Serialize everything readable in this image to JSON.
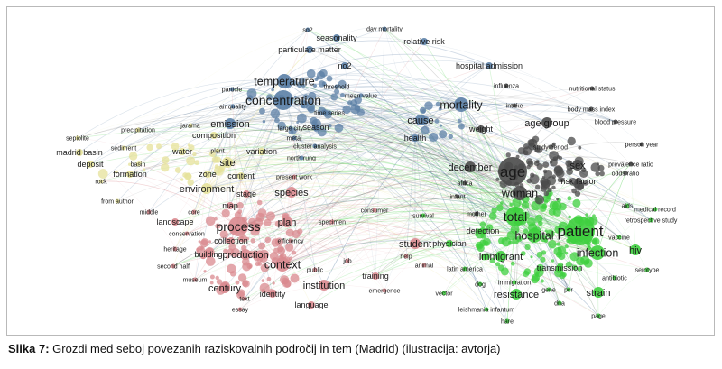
{
  "caption": {
    "label": "Slika 7:",
    "text": " Grozdi med seboj povezanih raziskovalnih področij in tem (Madrid) (ilustracija: avtorja)"
  },
  "clusters": [
    {
      "id": "blue",
      "color": "#5b7fa6"
    },
    {
      "id": "grey",
      "color": "#4a4a4a"
    },
    {
      "id": "green",
      "color": "#3ecf3e"
    },
    {
      "id": "red",
      "color": "#d9898f"
    },
    {
      "id": "yellow",
      "color": "#e6e29a"
    }
  ],
  "nodes": [
    {
      "t": "so2",
      "c": "blue",
      "w": 1
    },
    {
      "t": "seasonality",
      "c": "blue",
      "w": 2
    },
    {
      "t": "day mortality",
      "c": "blue",
      "w": 1
    },
    {
      "t": "particulate matter",
      "c": "blue",
      "w": 2
    },
    {
      "t": "relative risk",
      "c": "blue",
      "w": 2
    },
    {
      "t": "no2",
      "c": "blue",
      "w": 2
    },
    {
      "t": "hospital admission",
      "c": "blue",
      "w": 2
    },
    {
      "t": "temperature",
      "c": "blue",
      "w": 4
    },
    {
      "t": "threshold",
      "c": "blue",
      "w": 1
    },
    {
      "t": "particle",
      "c": "blue",
      "w": 1
    },
    {
      "t": "mean value",
      "c": "blue",
      "w": 1
    },
    {
      "t": "concentration",
      "c": "blue",
      "w": 5
    },
    {
      "t": "air quality",
      "c": "blue",
      "w": 1
    },
    {
      "t": "time series",
      "c": "blue",
      "w": 1
    },
    {
      "t": "emission",
      "c": "blue",
      "w": 3
    },
    {
      "t": "season",
      "c": "blue",
      "w": 2
    },
    {
      "t": "large city",
      "c": "blue",
      "w": 1
    },
    {
      "t": "metal",
      "c": "blue",
      "w": 1
    },
    {
      "t": "cluster analysis",
      "c": "blue",
      "w": 1
    },
    {
      "t": "north rung",
      "c": "blue",
      "w": 1
    },
    {
      "t": "mortality",
      "c": "blue",
      "w": 4
    },
    {
      "t": "cause",
      "c": "blue",
      "w": 3
    },
    {
      "t": "health",
      "c": "blue",
      "w": 2
    },
    {
      "t": "influenza",
      "c": "grey",
      "w": 1
    },
    {
      "t": "nutritional status",
      "c": "grey",
      "w": 1
    },
    {
      "t": "intake",
      "c": "grey",
      "w": 1
    },
    {
      "t": "body mass index",
      "c": "grey",
      "w": 1
    },
    {
      "t": "weight",
      "c": "grey",
      "w": 2
    },
    {
      "t": "age group",
      "c": "grey",
      "w": 3
    },
    {
      "t": "blood pressure",
      "c": "grey",
      "w": 1
    },
    {
      "t": "study period",
      "c": "grey",
      "w": 1
    },
    {
      "t": "person year",
      "c": "grey",
      "w": 1
    },
    {
      "t": "prevalence ratio",
      "c": "grey",
      "w": 1
    },
    {
      "t": "odds ratio",
      "c": "grey",
      "w": 1
    },
    {
      "t": "december",
      "c": "grey",
      "w": 3
    },
    {
      "t": "age",
      "c": "grey",
      "w": 6
    },
    {
      "t": "sex",
      "c": "grey",
      "w": 3
    },
    {
      "t": "risk factor",
      "c": "grey",
      "w": 2
    },
    {
      "t": "woman",
      "c": "grey",
      "w": 4
    },
    {
      "t": "africa",
      "c": "grey",
      "w": 1
    },
    {
      "t": "infant",
      "c": "grey",
      "w": 1
    },
    {
      "t": "mother",
      "c": "grey",
      "w": 1
    },
    {
      "t": "total",
      "c": "green",
      "w": 5
    },
    {
      "t": "detection",
      "c": "green",
      "w": 2
    },
    {
      "t": "hospital",
      "c": "green",
      "w": 4
    },
    {
      "t": "patient",
      "c": "green",
      "w": 6
    },
    {
      "t": "immigrant",
      "c": "green",
      "w": 3
    },
    {
      "t": "infection",
      "c": "green",
      "w": 4
    },
    {
      "t": "hiv",
      "c": "green",
      "w": 3
    },
    {
      "t": "transmission",
      "c": "green",
      "w": 2
    },
    {
      "t": "strain",
      "c": "green",
      "w": 3
    },
    {
      "t": "resistance",
      "c": "green",
      "w": 3
    },
    {
      "t": "gene",
      "c": "green",
      "w": 1
    },
    {
      "t": "pcr",
      "c": "green",
      "w": 1
    },
    {
      "t": "dna",
      "c": "green",
      "w": 1
    },
    {
      "t": "immigration",
      "c": "green",
      "w": 1
    },
    {
      "t": "latin america",
      "c": "green",
      "w": 1
    },
    {
      "t": "vector",
      "c": "green",
      "w": 1
    },
    {
      "t": "leishmania infantum",
      "c": "green",
      "w": 1
    },
    {
      "t": "hare",
      "c": "green",
      "w": 1
    },
    {
      "t": "vaccine",
      "c": "green",
      "w": 1
    },
    {
      "t": "antibiotic",
      "c": "green",
      "w": 1
    },
    {
      "t": "serotype",
      "c": "green",
      "w": 1
    },
    {
      "t": "retrospective study",
      "c": "green",
      "w": 1
    },
    {
      "t": "medical record",
      "c": "green",
      "w": 1
    },
    {
      "t": "aids",
      "c": "green",
      "w": 1
    },
    {
      "t": "dog",
      "c": "green",
      "w": 1
    },
    {
      "t": "page",
      "c": "green",
      "w": 1
    },
    {
      "t": "survival",
      "c": "green",
      "w": 1
    },
    {
      "t": "physician",
      "c": "green",
      "w": 2
    },
    {
      "t": "student",
      "c": "red",
      "w": 3
    },
    {
      "t": "process",
      "c": "red",
      "w": 5
    },
    {
      "t": "context",
      "c": "red",
      "w": 4
    },
    {
      "t": "century",
      "c": "red",
      "w": 3
    },
    {
      "t": "institution",
      "c": "red",
      "w": 3
    },
    {
      "t": "language",
      "c": "red",
      "w": 2
    },
    {
      "t": "identity",
      "c": "red",
      "w": 2
    },
    {
      "t": "production",
      "c": "red",
      "w": 3
    },
    {
      "t": "building",
      "c": "red",
      "w": 2
    },
    {
      "t": "collection",
      "c": "red",
      "w": 2
    },
    {
      "t": "plan",
      "c": "red",
      "w": 3
    },
    {
      "t": "map",
      "c": "red",
      "w": 2
    },
    {
      "t": "stage",
      "c": "red",
      "w": 2
    },
    {
      "t": "species",
      "c": "red",
      "w": 3
    },
    {
      "t": "efficiency",
      "c": "red",
      "w": 1
    },
    {
      "t": "specimen",
      "c": "red",
      "w": 1
    },
    {
      "t": "landscape",
      "c": "red",
      "w": 2
    },
    {
      "t": "conservation",
      "c": "red",
      "w": 1
    },
    {
      "t": "heritage",
      "c": "red",
      "w": 1
    },
    {
      "t": "second half",
      "c": "red",
      "w": 1
    },
    {
      "t": "museum",
      "c": "red",
      "w": 1
    },
    {
      "t": "text",
      "c": "red",
      "w": 1
    },
    {
      "t": "essay",
      "c": "red",
      "w": 1
    },
    {
      "t": "public",
      "c": "red",
      "w": 1
    },
    {
      "t": "job",
      "c": "red",
      "w": 1
    },
    {
      "t": "training",
      "c": "red",
      "w": 2
    },
    {
      "t": "emergence",
      "c": "red",
      "w": 1
    },
    {
      "t": "animal",
      "c": "red",
      "w": 1
    },
    {
      "t": "help",
      "c": "red",
      "w": 1
    },
    {
      "t": "consumer",
      "c": "red",
      "w": 1
    },
    {
      "t": "present work",
      "c": "red",
      "w": 1
    },
    {
      "t": "middle",
      "c": "red",
      "w": 1
    },
    {
      "t": "core",
      "c": "red",
      "w": 1
    },
    {
      "t": "environment",
      "c": "yellow",
      "w": 3
    },
    {
      "t": "site",
      "c": "yellow",
      "w": 3
    },
    {
      "t": "zone",
      "c": "yellow",
      "w": 2
    },
    {
      "t": "content",
      "c": "yellow",
      "w": 2
    },
    {
      "t": "variation",
      "c": "yellow",
      "w": 2
    },
    {
      "t": "plant",
      "c": "yellow",
      "w": 1
    },
    {
      "t": "composition",
      "c": "yellow",
      "w": 2
    },
    {
      "t": "jarama",
      "c": "yellow",
      "w": 1
    },
    {
      "t": "precipitation",
      "c": "yellow",
      "w": 1
    },
    {
      "t": "sepiolite",
      "c": "yellow",
      "w": 1
    },
    {
      "t": "madrid basin",
      "c": "yellow",
      "w": 2
    },
    {
      "t": "sediment",
      "c": "yellow",
      "w": 1
    },
    {
      "t": "deposit",
      "c": "yellow",
      "w": 2
    },
    {
      "t": "basin",
      "c": "yellow",
      "w": 1
    },
    {
      "t": "formation",
      "c": "yellow",
      "w": 2
    },
    {
      "t": "water",
      "c": "yellow",
      "w": 2
    },
    {
      "t": "rock",
      "c": "yellow",
      "w": 1
    },
    {
      "t": "from author",
      "c": "yellow",
      "w": 1
    }
  ]
}
